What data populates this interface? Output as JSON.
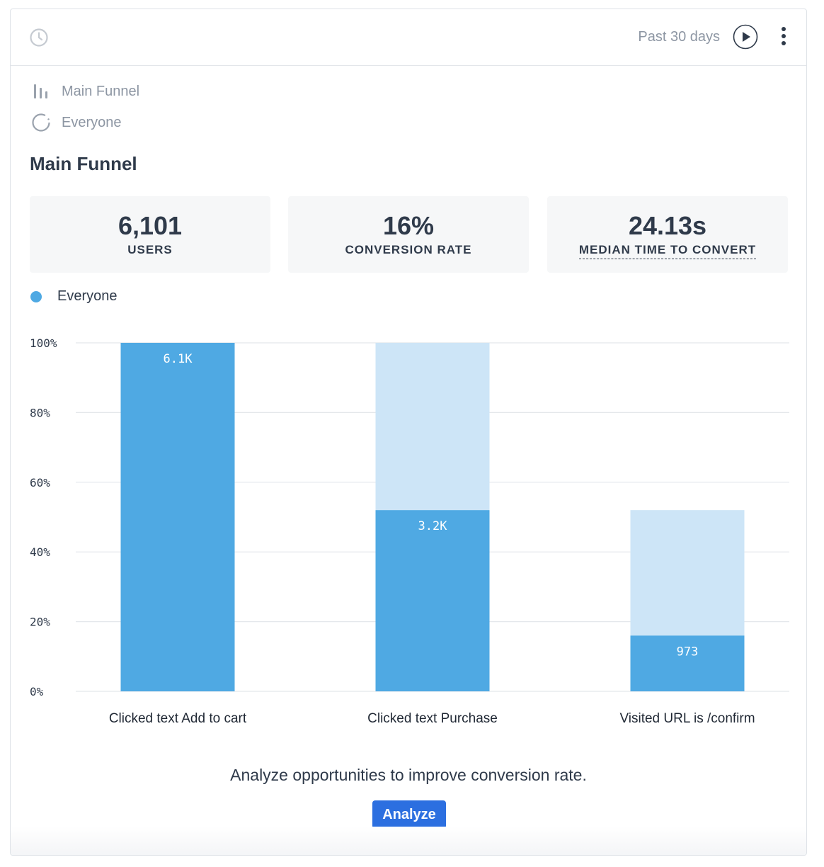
{
  "header": {
    "period": "Past 30 days",
    "icons": {
      "clock": "clock-icon",
      "play": "play-icon",
      "more": "more-vertical-icon"
    }
  },
  "meta": {
    "report_name": "Main Funnel",
    "segment": "Everyone"
  },
  "title": "Main Funnel",
  "stats": [
    {
      "value": "6,101",
      "label": "USERS"
    },
    {
      "value": "16%",
      "label": "CONVERSION RATE"
    },
    {
      "value": "24.13s",
      "label": "MEDIAN TIME TO CONVERT"
    }
  ],
  "legend": {
    "label": "Everyone",
    "color": "#4fa9e3"
  },
  "chart_data": {
    "type": "bar",
    "categories": [
      "Clicked text Add to cart",
      "Clicked text Purchase",
      "Visited URL is /confirm"
    ],
    "series": [
      {
        "name": "Everyone",
        "values": [
          100,
          52,
          16
        ]
      }
    ],
    "previous_step_values": [
      100,
      100,
      52
    ],
    "bar_labels": [
      "6.1K",
      "3.2K",
      "973"
    ],
    "yticks": [
      "0%",
      "20%",
      "40%",
      "60%",
      "80%",
      "100%"
    ],
    "ylim": [
      0,
      100
    ],
    "colors": {
      "bar": "#4fa9e3",
      "dropoff": "#cde5f7",
      "grid": "#e4e7eb"
    }
  },
  "cta": {
    "text": "Analyze opportunities to improve conversion rate.",
    "button": "Analyze"
  }
}
